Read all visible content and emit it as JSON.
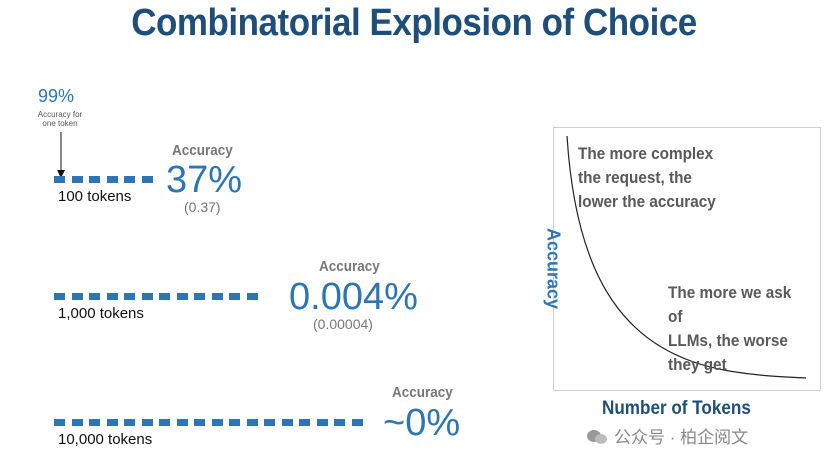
{
  "title": "Combinatorial Explosion of Choice",
  "per_token": {
    "accuracy": "99%",
    "note": "Accuracy for one token"
  },
  "rows": [
    {
      "tokens_label": "100 tokens",
      "accuracy_label": "Accuracy",
      "accuracy_value": "37%",
      "accuracy_sub": "(0.37)"
    },
    {
      "tokens_label": "1,000 tokens",
      "accuracy_label": "Accuracy",
      "accuracy_value": "0.004%",
      "accuracy_sub": "(0.00004)"
    },
    {
      "tokens_label": "10,000 tokens",
      "accuracy_label": "Accuracy",
      "accuracy_value": "~0%",
      "accuracy_sub": ""
    }
  ],
  "chart": {
    "ylabel": "Accuracy",
    "xlabel": "Number of Tokens",
    "annotation_top": [
      "The more complex",
      "the request, the",
      "lower the accuracy"
    ],
    "annotation_bottom": [
      "The more we ask of",
      "LLMs, the worse",
      "they get"
    ]
  },
  "watermark": "公众号 · 柏企阅文",
  "colors": {
    "title": "#1f4e79",
    "accent": "#2e75b6",
    "muted": "#777777"
  }
}
